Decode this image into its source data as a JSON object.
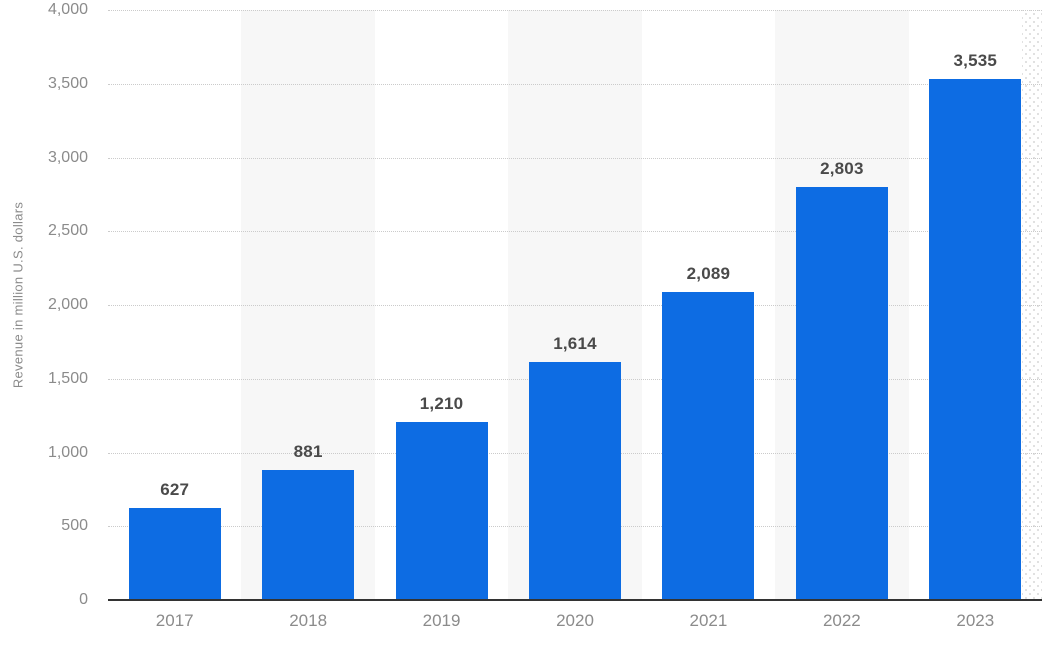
{
  "chart_data": {
    "type": "bar",
    "title": "",
    "xlabel": "",
    "ylabel": "Revenue in million U.S. dollars",
    "categories": [
      "2017",
      "2018",
      "2019",
      "2020",
      "2021",
      "2022",
      "2023"
    ],
    "values": [
      627,
      881,
      1210,
      1614,
      2089,
      2803,
      3535
    ],
    "value_labels": [
      "627",
      "881",
      "1,210",
      "1,614",
      "2,089",
      "2,803",
      "3,535"
    ],
    "ylim": [
      0,
      4000
    ],
    "ytick_step": 500,
    "ytick_labels": [
      "0",
      "500",
      "1,000",
      "1,500",
      "2,000",
      "2,500",
      "3,000",
      "3,500",
      "4,000"
    ],
    "grid": "horizontal-dotted",
    "legend": "none",
    "banded_columns": [
      1,
      3,
      5
    ],
    "colors": {
      "bar": "#0d6ce3",
      "band": "#f7f7f7",
      "gridline": "#cbcbcb",
      "axis_line": "#333333",
      "tick_label": "#8b8b8b",
      "value_label": "#4a4a4a",
      "background": "#ffffff"
    }
  }
}
